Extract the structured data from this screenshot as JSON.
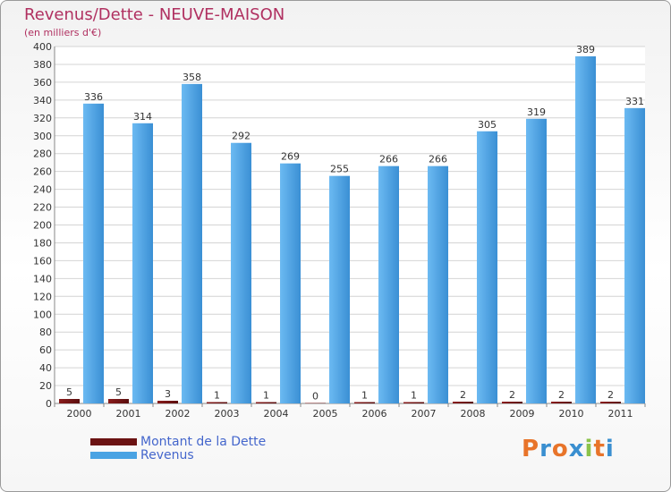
{
  "chart_data": {
    "type": "bar",
    "title": "Revenus/Dette - NEUVE-MAISON",
    "subtitle": "(en milliers d'€)",
    "categories": [
      "2000",
      "2001",
      "2002",
      "2003",
      "2004",
      "2005",
      "2006",
      "2007",
      "2008",
      "2009",
      "2010",
      "2011"
    ],
    "series": [
      {
        "name": "Montant de la Dette",
        "color": "#6b1212",
        "values": [
          5,
          5,
          3,
          1,
          1,
          0,
          1,
          1,
          2,
          2,
          2,
          2
        ]
      },
      {
        "name": "Revenus",
        "color": "#4aa3e3",
        "values": [
          336,
          314,
          358,
          292,
          269,
          255,
          266,
          266,
          305,
          319,
          389,
          331
        ]
      }
    ],
    "ylim": [
      0,
      400
    ],
    "ytick_step": 20,
    "grid": true,
    "legend_position": "bottom-left"
  },
  "logo": {
    "text": "Proxiti",
    "colors": [
      "#e8742a",
      "#3a8fd0",
      "#e8742a",
      "#3a8fd0",
      "#8bc34a",
      "#e8742a",
      "#3a8fd0"
    ]
  }
}
